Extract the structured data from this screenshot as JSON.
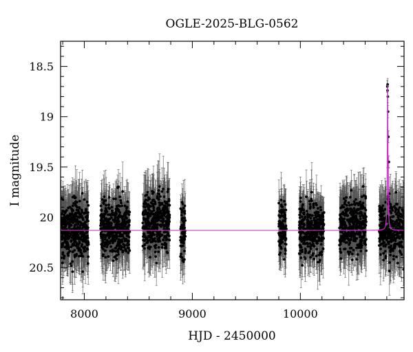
{
  "chart_data": {
    "type": "scatter",
    "title": "OGLE-2025-BLG-0562",
    "xlabel": "HJD - 2450000",
    "ylabel": "I magnitude",
    "xlim": [
      7780,
      10960
    ],
    "ylim": [
      20.82,
      18.25
    ],
    "y_inverted": true,
    "x_ticks": [
      {
        "value": 8000,
        "label": "8000"
      },
      {
        "value": 9000,
        "label": "9000"
      },
      {
        "value": 10000,
        "label": "10000"
      }
    ],
    "y_ticks": [
      {
        "value": 18.5,
        "label": "18.5"
      },
      {
        "value": 19,
        "label": "19"
      },
      {
        "value": 19.5,
        "label": "19.5"
      },
      {
        "value": 20,
        "label": "20"
      },
      {
        "value": 20.5,
        "label": "20.5"
      }
    ],
    "x_minor_step": 200,
    "y_minor_step": 0.1,
    "grid": false,
    "baseline_magnitude": 20.13,
    "seasons": [
      {
        "start": 7780,
        "end": 8040,
        "mean": 20.12,
        "spread": 0.55,
        "err": 0.22
      },
      {
        "start": 8150,
        "end": 8420,
        "mean": 20.12,
        "spread": 0.5,
        "err": 0.2
      },
      {
        "start": 8540,
        "end": 8790,
        "mean": 20.05,
        "spread": 0.55,
        "err": 0.22
      },
      {
        "start": 8890,
        "end": 8935,
        "mean": 20.15,
        "spread": 0.5,
        "err": 0.2
      },
      {
        "start": 9800,
        "end": 9870,
        "mean": 20.12,
        "spread": 0.5,
        "err": 0.2
      },
      {
        "start": 9990,
        "end": 10220,
        "mean": 20.12,
        "spread": 0.48,
        "err": 0.2
      },
      {
        "start": 10360,
        "end": 10610,
        "mean": 20.1,
        "spread": 0.52,
        "err": 0.22
      },
      {
        "start": 10730,
        "end": 10960,
        "mean": 20.12,
        "spread": 0.52,
        "err": 0.22
      }
    ],
    "event": {
      "t0": 10808,
      "peak_magnitude": 18.68,
      "width_days": 9
    },
    "peak_points": [
      {
        "x": 10805,
        "y": 18.7
      },
      {
        "x": 10807,
        "y": 18.74
      },
      {
        "x": 10808,
        "y": 18.68
      },
      {
        "x": 10810,
        "y": 18.8
      },
      {
        "x": 10812,
        "y": 18.95
      },
      {
        "x": 10815,
        "y": 19.2
      },
      {
        "x": 10819,
        "y": 19.45
      }
    ],
    "colors": {
      "points": "#000000",
      "error_bars": "#555555",
      "model": "#cc33cc",
      "axes": "#000000"
    },
    "series": [
      {
        "type": "points_with_error_bars"
      },
      {
        "type": "model_curve"
      }
    ]
  }
}
